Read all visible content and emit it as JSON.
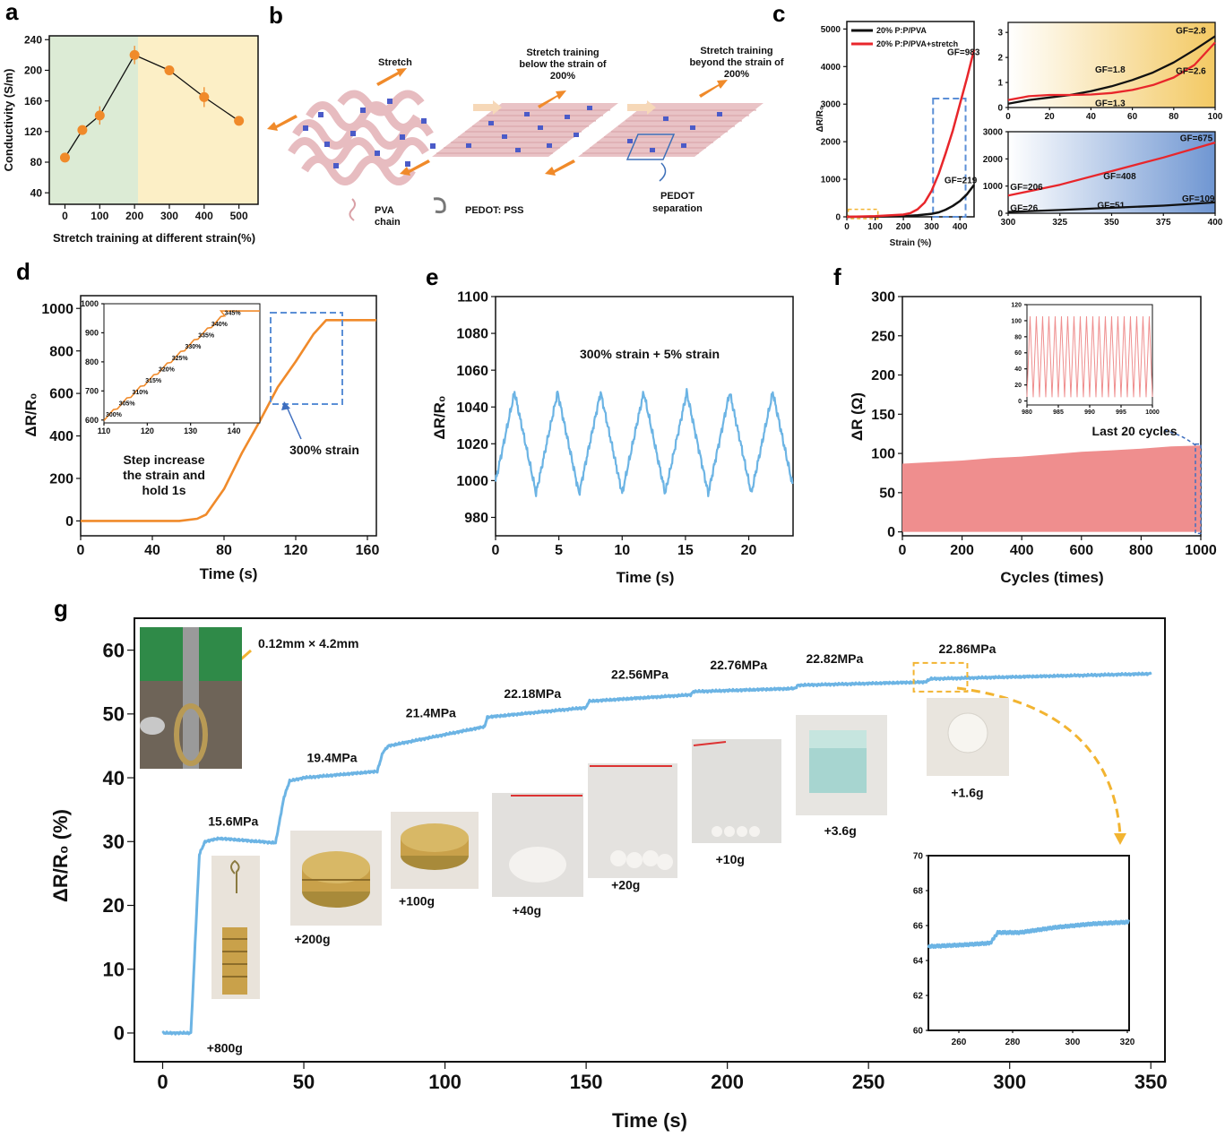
{
  "panels": {
    "a": {
      "label": "a"
    },
    "b": {
      "label": "b"
    },
    "c": {
      "label": "c"
    },
    "d": {
      "label": "d"
    },
    "e": {
      "label": "e"
    },
    "f": {
      "label": "f"
    },
    "g": {
      "label": "g"
    }
  },
  "colors": {
    "orange": "#f08a2a",
    "blue": "#6cb4e4",
    "red": "#e8262b",
    "pink": "#ef8e8e",
    "green_bg": "#dcebd5",
    "yellow_bg": "#fcefc6",
    "dash_blue": "#5b8fd6",
    "dash_yellow": "#f2b431"
  },
  "diagram_b": {
    "stretch": "Stretch",
    "below": [
      "Stretch training",
      "below the strain of",
      "200%"
    ],
    "beyond": [
      "Stretch training",
      "beyond the strain of",
      "200%"
    ],
    "legend_pva": [
      "PVA",
      "chain"
    ],
    "legend_pedot": "PEDOT: PSS",
    "separation": [
      "PEDOT",
      "separation"
    ]
  },
  "chart_data": [
    {
      "id": "a",
      "type": "scatter",
      "xlabel": "Stretch training at different strain(%)",
      "ylabel": "Conductivity (S/m)",
      "xlim": [
        -45,
        555
      ],
      "ylim": [
        25,
        245
      ],
      "xticks": [
        0,
        100,
        200,
        300,
        400,
        500
      ],
      "yticks": [
        40,
        80,
        120,
        160,
        200,
        240
      ],
      "x": [
        0,
        50,
        100,
        200,
        300,
        400,
        500
      ],
      "y": [
        86,
        122,
        141,
        220,
        200,
        165,
        134
      ],
      "err": [
        4,
        3,
        12,
        12,
        5,
        13,
        3
      ],
      "bg_split_x": 210
    },
    {
      "id": "c_main",
      "type": "line",
      "xlabel": "Strain (%)",
      "ylabel": "ΔR/R₀",
      "xlim": [
        0,
        450
      ],
      "ylim": [
        0,
        5200
      ],
      "xticks": [
        0,
        100,
        200,
        300,
        400
      ],
      "yticks": [
        0,
        1000,
        2000,
        3000,
        4000,
        5000
      ],
      "series": [
        {
          "name": "20% P:P/PVA",
          "color": "black",
          "x": [
            0,
            100,
            200,
            250,
            300,
            325,
            350,
            375,
            400,
            425,
            450
          ],
          "y": [
            0,
            5,
            20,
            40,
            80,
            120,
            190,
            290,
            420,
            600,
            850
          ]
        },
        {
          "name": "20% P:P/PVA+stretch",
          "color": "red",
          "x": [
            0,
            100,
            200,
            225,
            250,
            275,
            300,
            325,
            350,
            375,
            400,
            425,
            450
          ],
          "y": [
            0,
            20,
            60,
            100,
            200,
            380,
            700,
            1150,
            1700,
            2300,
            3000,
            3700,
            4450
          ]
        }
      ],
      "annotations": [
        {
          "text": "GF=983",
          "x": 355,
          "y": 4300,
          "color": "red"
        },
        {
          "text": "GF=219",
          "x": 345,
          "y": 900,
          "color": "black"
        }
      ]
    },
    {
      "id": "c_inset_top",
      "type": "line",
      "xlim": [
        0,
        100
      ],
      "ylim": [
        0,
        3.4
      ],
      "xticks": [
        0,
        20,
        40,
        60,
        80,
        100
      ],
      "yticks": [
        0,
        1,
        2,
        3
      ],
      "series": [
        {
          "color": "black",
          "x": [
            0,
            10,
            20,
            30,
            40,
            50,
            60,
            70,
            80,
            90,
            100
          ],
          "y": [
            0.15,
            0.3,
            0.4,
            0.5,
            0.65,
            0.85,
            1.1,
            1.4,
            1.8,
            2.3,
            2.85
          ]
        },
        {
          "color": "red",
          "x": [
            0,
            10,
            20,
            30,
            40,
            50,
            60,
            70,
            80,
            90,
            100
          ],
          "y": [
            0.3,
            0.45,
            0.5,
            0.5,
            0.52,
            0.58,
            0.7,
            0.9,
            1.2,
            1.7,
            2.6
          ]
        }
      ],
      "annotations": [
        {
          "text": "GF=2.8",
          "x": 81,
          "y": 2.95,
          "color": "black"
        },
        {
          "text": "GF=1.8",
          "x": 42,
          "y": 1.4,
          "color": "black"
        },
        {
          "text": "GF=2.6",
          "x": 81,
          "y": 1.35,
          "color": "red"
        },
        {
          "text": "GF=1.3",
          "x": 42,
          "y": 0.05,
          "color": "red"
        }
      ]
    },
    {
      "id": "c_inset_bottom",
      "type": "line",
      "xlim": [
        300,
        400
      ],
      "ylim": [
        0,
        3000
      ],
      "xticks": [
        300,
        325,
        350,
        375,
        400
      ],
      "yticks": [
        0,
        1000,
        2000,
        3000
      ],
      "series": [
        {
          "color": "red",
          "x": [
            300,
            325,
            350,
            375,
            400
          ],
          "y": [
            650,
            1050,
            1550,
            2050,
            2600
          ]
        },
        {
          "color": "black",
          "x": [
            300,
            325,
            350,
            375,
            400
          ],
          "y": [
            50,
            120,
            200,
            280,
            400
          ]
        }
      ],
      "annotations": [
        {
          "text": "GF=675",
          "x": 383,
          "y": 2650,
          "color": "red"
        },
        {
          "text": "GF=206",
          "x": 301,
          "y": 850,
          "color": "red"
        },
        {
          "text": "GF=408",
          "x": 346,
          "y": 1250,
          "color": "red"
        },
        {
          "text": "GF=26",
          "x": 301,
          "y": 80,
          "color": "black"
        },
        {
          "text": "GF=51",
          "x": 343,
          "y": 180,
          "color": "black"
        },
        {
          "text": "GF=109",
          "x": 384,
          "y": 430,
          "color": "black"
        }
      ]
    },
    {
      "id": "d",
      "type": "line",
      "xlabel": "Time (s)",
      "ylabel": "ΔR/R₀",
      "xlim": [
        0,
        165
      ],
      "ylim": [
        -70,
        1060
      ],
      "xticks": [
        0,
        40,
        80,
        120,
        160
      ],
      "yticks": [
        0,
        200,
        400,
        600,
        800,
        1000
      ],
      "x": [
        0,
        55,
        65,
        70,
        80,
        90,
        100,
        110,
        120,
        130,
        137,
        165
      ],
      "y": [
        0,
        0,
        10,
        30,
        150,
        320,
        470,
        630,
        750,
        880,
        945,
        945
      ],
      "annotations": [
        {
          "text": "300% strain"
        },
        {
          "text": "Step increase"
        },
        {
          "text": "the strain and"
        },
        {
          "text": "hold 1s"
        }
      ]
    },
    {
      "id": "d_inset",
      "type": "line",
      "xlim": [
        110,
        146
      ],
      "ylim": [
        590,
        1000
      ],
      "xticks": [
        110,
        120,
        130,
        140
      ],
      "yticks": [
        600,
        700,
        800,
        900,
        1000
      ],
      "steps": [
        "300%",
        "305%",
        "310%",
        "315%",
        "320%",
        "325%",
        "330%",
        "335%",
        "340%",
        "345%"
      ]
    },
    {
      "id": "e",
      "type": "line",
      "xlabel": "Time (s)",
      "ylabel": "ΔR/R₀",
      "xlim": [
        0,
        23.5
      ],
      "ylim": [
        970,
        1100
      ],
      "xticks": [
        0,
        5,
        10,
        15,
        20
      ],
      "yticks": [
        980,
        1000,
        1020,
        1040,
        1060,
        1080,
        1100
      ],
      "period": 3.4,
      "peak": 1048,
      "valley": 993,
      "annotation": "300% strain + 5% strain"
    },
    {
      "id": "f",
      "type": "area",
      "xlabel": "Cycles (times)",
      "ylabel": "ΔR (Ω)",
      "xlim": [
        0,
        1000
      ],
      "ylim": [
        -5,
        300
      ],
      "xticks": [
        0,
        200,
        400,
        600,
        800,
        1000
      ],
      "yticks": [
        0,
        50,
        100,
        150,
        200,
        250,
        300
      ],
      "x": [
        0,
        100,
        200,
        300,
        400,
        500,
        600,
        700,
        800,
        900,
        1000
      ],
      "upper": [
        87,
        89,
        91,
        94,
        96,
        99,
        102,
        104,
        106,
        109,
        110
      ],
      "lower": [
        0,
        0,
        0,
        0,
        0,
        0,
        0,
        0,
        0,
        0,
        0
      ],
      "annotation": "Last 20 cycles"
    },
    {
      "id": "f_inset",
      "type": "line",
      "xlim": [
        980,
        1000
      ],
      "ylim": [
        -5,
        120
      ],
      "xticks": [
        980,
        985,
        990,
        995,
        1000
      ],
      "yticks": [
        0,
        20,
        40,
        60,
        80,
        100,
        120
      ],
      "cycles": 20,
      "max": 105,
      "min": 5
    },
    {
      "id": "g",
      "type": "line",
      "xlabel": "Time (s)",
      "ylabel": "ΔR/R₀ (%)",
      "xlim": [
        -10,
        355
      ],
      "ylim": [
        -4.5,
        65
      ],
      "xticks": [
        0,
        50,
        100,
        150,
        200,
        250,
        300,
        350
      ],
      "yticks": [
        0,
        10,
        20,
        30,
        40,
        50,
        60
      ],
      "x": [
        0,
        10,
        13,
        15,
        20,
        40,
        43,
        45,
        50,
        76,
        78,
        80,
        114,
        115,
        150,
        151,
        187,
        188,
        224,
        225,
        270,
        272,
        350
      ],
      "y": [
        0,
        0,
        28,
        30,
        30.5,
        29.8,
        37,
        39.5,
        40,
        41,
        44,
        45,
        48,
        49.5,
        51,
        52,
        53,
        53.5,
        54,
        54.5,
        55,
        55.5,
        56.3
      ],
      "stress_labels": [
        {
          "text": "15.6MPa",
          "x": 25,
          "y": 32.5
        },
        {
          "text": "19.4MPa",
          "x": 60,
          "y": 42.5
        },
        {
          "text": "21.4MPa",
          "x": 95,
          "y": 49.5
        },
        {
          "text": "22.18MPa",
          "x": 131,
          "y": 52.5
        },
        {
          "text": "22.56MPa",
          "x": 169,
          "y": 55.5
        },
        {
          "text": "22.76MPa",
          "x": 204,
          "y": 57.0
        },
        {
          "text": "22.82MPa",
          "x": 238,
          "y": 58.0
        },
        {
          "text": "22.86MPa",
          "x": 285,
          "y": 59.5
        }
      ],
      "weights": [
        {
          "text": "+800g",
          "x": 22,
          "y": -3
        },
        {
          "text": "+200g",
          "x": 53,
          "y": 14
        },
        {
          "text": "+100g",
          "x": 90,
          "y": 20
        },
        {
          "text": "+40g",
          "x": 129,
          "y": 18.5
        },
        {
          "text": "+20g",
          "x": 164,
          "y": 22.5
        },
        {
          "text": "+10g",
          "x": 201,
          "y": 26.5
        },
        {
          "text": "+3.6g",
          "x": 240,
          "y": 31
        },
        {
          "text": "+1.6g",
          "x": 285,
          "y": 37
        }
      ],
      "dimension_text": "0.12mm × 4.2mm"
    },
    {
      "id": "g_inset",
      "type": "line",
      "xlim": [
        265,
        320
      ],
      "ylim": [
        60,
        70
      ],
      "xticks": [
        260,
        280,
        300,
        320
      ],
      "xtick_labels": [
        "260",
        "280",
        "300",
        "320"
      ],
      "yticks": [
        60,
        62,
        64,
        66,
        68,
        70
      ],
      "x": [
        265,
        275,
        282,
        284,
        290,
        300,
        310,
        320
      ],
      "y": [
        64.8,
        64.9,
        65.0,
        65.6,
        65.6,
        65.9,
        66.1,
        66.2
      ]
    }
  ]
}
